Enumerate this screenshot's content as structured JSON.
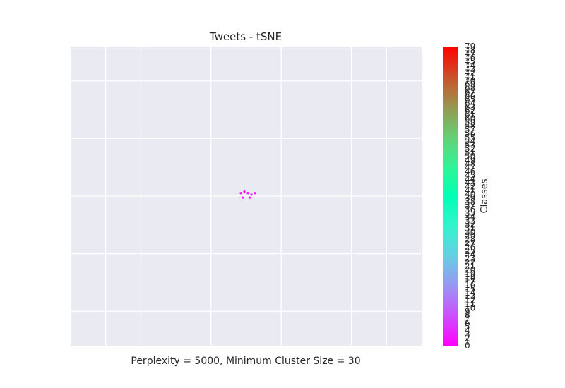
{
  "chart_data": {
    "type": "scatter",
    "title": "Tweets - tSNE",
    "xlabel": "Perplexity = 5000, Minimum Cluster Size = 30",
    "ylabel": "",
    "grid": true,
    "points": [
      {
        "x": -0.03,
        "y": 0.02,
        "class": 0
      },
      {
        "x": -0.01,
        "y": 0.03,
        "class": 1
      },
      {
        "x": 0.01,
        "y": 0.02,
        "class": 0
      },
      {
        "x": 0.03,
        "y": 0.01,
        "class": 2
      },
      {
        "x": 0.05,
        "y": 0.02,
        "class": 1
      },
      {
        "x": -0.02,
        "y": -0.01,
        "class": 0
      },
      {
        "x": 0.02,
        "y": -0.01,
        "class": 0
      }
    ],
    "colorbar": {
      "label": "Classes",
      "colormap": "rainbow",
      "min": 0,
      "max": 79,
      "ticks": [
        0,
        1,
        2,
        3,
        4,
        5,
        6,
        7,
        8,
        9,
        10,
        11,
        12,
        13,
        14,
        15,
        16,
        17,
        18,
        19,
        20,
        21,
        22,
        23,
        24,
        25,
        26,
        27,
        28,
        29,
        30,
        31,
        32,
        33,
        34,
        35,
        36,
        37,
        38,
        39,
        40,
        41,
        42,
        43,
        44,
        45,
        46,
        47,
        48,
        49,
        50,
        51,
        52,
        53,
        54,
        55,
        56,
        57,
        58,
        59,
        60,
        61,
        62,
        63,
        64,
        65,
        66,
        67,
        68,
        69,
        70,
        71,
        72,
        73,
        74,
        75,
        76,
        77,
        78,
        79
      ]
    },
    "colors": {
      "plot_background": "#EAEAF2",
      "gridline": "#FFFFFF",
      "text": "#262626"
    }
  }
}
